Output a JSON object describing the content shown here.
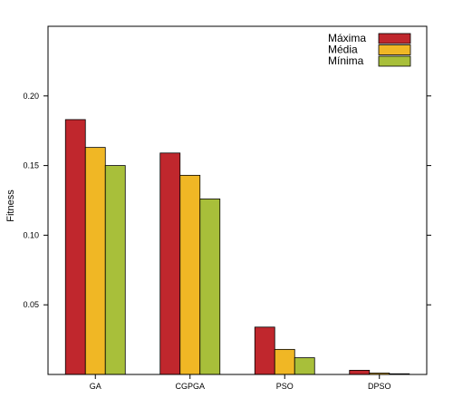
{
  "chart_data": {
    "type": "bar",
    "title": "",
    "xlabel": "",
    "ylabel": "Fitness",
    "categories": [
      "GA",
      "CGPGA",
      "PSO",
      "DPSO"
    ],
    "series": [
      {
        "name": "Máxima",
        "color": "#c0272d",
        "values": [
          0.183,
          0.159,
          0.034,
          0.003
        ]
      },
      {
        "name": "Média",
        "color": "#f0b725",
        "values": [
          0.163,
          0.143,
          0.018,
          0.001
        ]
      },
      {
        "name": "Mínima",
        "color": "#a8bf3a",
        "values": [
          0.15,
          0.126,
          0.012,
          0.0005
        ]
      }
    ],
    "ylim": [
      0,
      0.25
    ],
    "yticks": [
      "0.05",
      "0.10",
      "0.15",
      "0.20"
    ],
    "grid": false,
    "legend_position": "top-right"
  }
}
